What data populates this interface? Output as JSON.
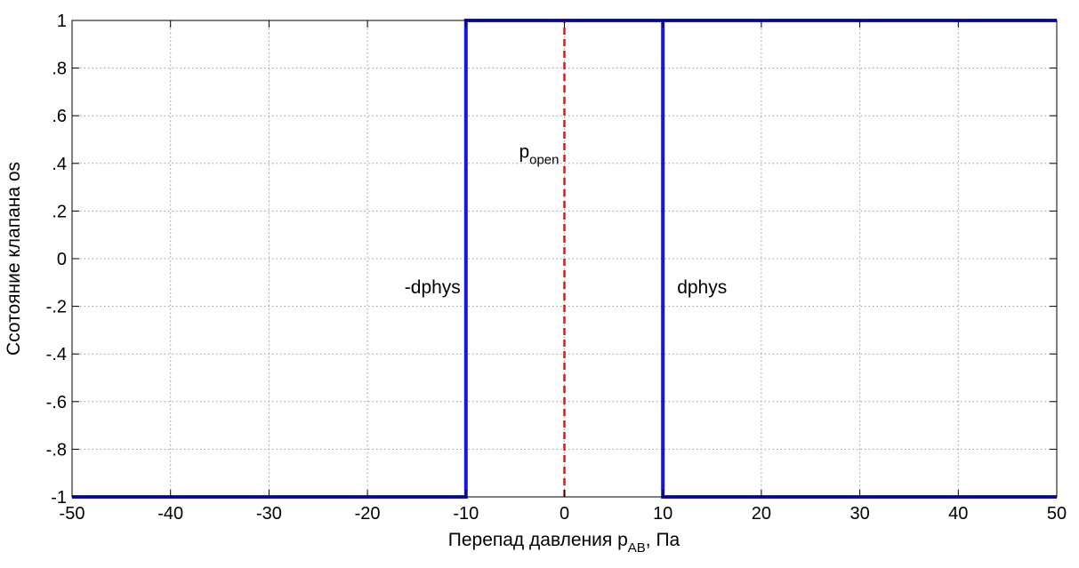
{
  "colors": {
    "background": "#ffffff",
    "axes": "#000000",
    "grid": "#9a9a9a",
    "series_hysteresis": "#1515e6",
    "series_popen": "#e61515"
  },
  "chart_data": {
    "type": "line",
    "title": "",
    "xlabel_main": "Перепад давления p",
    "xlabel_sub": "AB",
    "xlabel_tail": ", Па",
    "ylabel": "Ссотояние клапана os",
    "xlim": [
      -50,
      50
    ],
    "ylim": [
      -1,
      1
    ],
    "grid": true,
    "grid_style": "dotted",
    "xticks": [
      -50,
      -40,
      -30,
      -20,
      -10,
      0,
      10,
      20,
      30,
      40,
      50
    ],
    "yticks": [
      -1,
      -0.8,
      -0.6,
      -0.4,
      -0.2,
      0,
      0.2,
      0.4,
      0.6,
      0.8,
      1
    ],
    "series": [
      {
        "style": "solid",
        "color": "#1515e6",
        "x": [
          -50,
          -10,
          -10,
          10,
          10,
          50
        ],
        "y": [
          -1,
          -1,
          1,
          1,
          -1,
          -1
        ]
      },
      {
        "style": "solid",
        "color": "#1515e6",
        "x": [
          -10,
          50
        ],
        "y": [
          1,
          1
        ]
      },
      {
        "style": "dashed",
        "color": "#e61515",
        "x": [
          0,
          0
        ],
        "y": [
          -1,
          1
        ]
      }
    ],
    "annotations": [
      {
        "id": "neg-dphys",
        "text": "-dphys",
        "x": -10,
        "y": -0.12,
        "anchor": "end"
      },
      {
        "id": "dphys",
        "text": "dphys",
        "x": 10,
        "y": -0.12,
        "anchor": "start"
      },
      {
        "id": "popen",
        "text_main": "p",
        "text_sub": "open",
        "x": 0,
        "y": 0.45,
        "anchor": "end"
      }
    ]
  }
}
